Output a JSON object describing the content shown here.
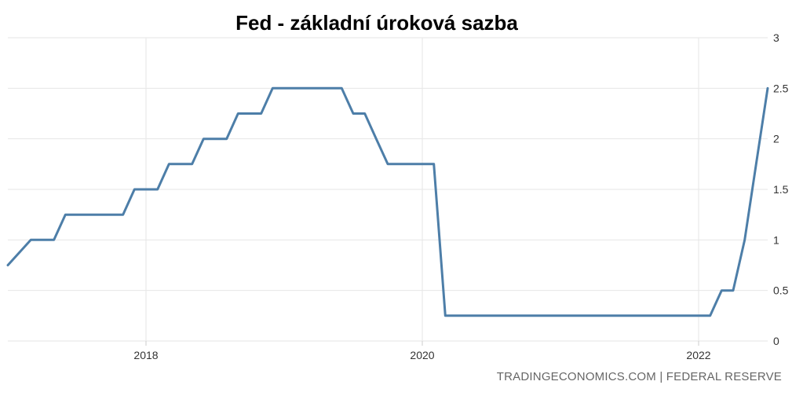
{
  "chart_data": {
    "type": "line",
    "title": "Fed - základní úroková sazba",
    "xlabel": "",
    "ylabel": "",
    "ylim": [
      0,
      3
    ],
    "xlim": [
      "2017-01",
      "2022-07"
    ],
    "y_ticks": [
      "0",
      "0.5",
      "1",
      "1.5",
      "2",
      "2.5",
      "3"
    ],
    "x_ticks": [
      "2018",
      "2020",
      "2022"
    ],
    "grid": true,
    "color": "#4d7ea8",
    "series": [
      {
        "name": "",
        "points": [
          {
            "x": "2017-01",
            "y": 0.75
          },
          {
            "x": "2017-03",
            "y": 1.0
          },
          {
            "x": "2017-05",
            "y": 1.0
          },
          {
            "x": "2017-06",
            "y": 1.25
          },
          {
            "x": "2017-11",
            "y": 1.25
          },
          {
            "x": "2017-12",
            "y": 1.5
          },
          {
            "x": "2018-02",
            "y": 1.5
          },
          {
            "x": "2018-03",
            "y": 1.75
          },
          {
            "x": "2018-05",
            "y": 1.75
          },
          {
            "x": "2018-06",
            "y": 2.0
          },
          {
            "x": "2018-08",
            "y": 2.0
          },
          {
            "x": "2018-09",
            "y": 2.25
          },
          {
            "x": "2018-11",
            "y": 2.25
          },
          {
            "x": "2018-12",
            "y": 2.5
          },
          {
            "x": "2019-06",
            "y": 2.5
          },
          {
            "x": "2019-07",
            "y": 2.25
          },
          {
            "x": "2019-08",
            "y": 2.25
          },
          {
            "x": "2019-09",
            "y": 2.0
          },
          {
            "x": "2019-10",
            "y": 1.75
          },
          {
            "x": "2020-02",
            "y": 1.75
          },
          {
            "x": "2020-03",
            "y": 0.25
          },
          {
            "x": "2022-02",
            "y": 0.25
          },
          {
            "x": "2022-03",
            "y": 0.5
          },
          {
            "x": "2022-04",
            "y": 0.5
          },
          {
            "x": "2022-05",
            "y": 1.0
          },
          {
            "x": "2022-06",
            "y": 1.75
          },
          {
            "x": "2022-07",
            "y": 2.5
          }
        ]
      }
    ]
  },
  "footer": {
    "source": "TRADINGECONOMICS.COM  |  FEDERAL RESERVE"
  }
}
